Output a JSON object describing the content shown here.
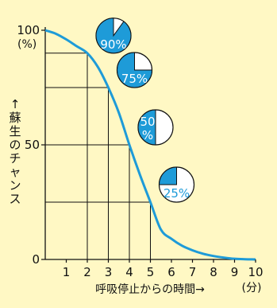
{
  "chart_data": {
    "type": "line",
    "title": "",
    "xlabel": "呼吸停止からの時間→",
    "x_unit": "(分)",
    "ylabel_chars": [
      "↑",
      "蘇",
      "生",
      "の",
      "チ",
      "ャ",
      "ン",
      "ス"
    ],
    "y_unit": "(%)",
    "xlim": [
      0,
      10
    ],
    "ylim": [
      0,
      100
    ],
    "x_ticks": [
      "1",
      "2",
      "3",
      "4",
      "5",
      "6",
      "7",
      "8",
      "9",
      "10"
    ],
    "y_ticks": [
      "0",
      "50",
      "100"
    ],
    "grid": false,
    "series": [
      {
        "x": [
          0,
          0.5,
          1,
          1.5,
          2,
          2.5,
          3,
          3.5,
          4,
          4.5,
          5,
          5.5,
          6,
          6.5,
          7,
          7.5,
          8,
          8.5,
          9,
          9.5,
          10
        ],
        "y": [
          100,
          98.5,
          96,
          93,
          90,
          84,
          75,
          64,
          50,
          37,
          25,
          13,
          9,
          6,
          4,
          2.5,
          1.5,
          0.8,
          0.3,
          0.1,
          0
        ]
      }
    ],
    "markers": [
      {
        "x": 2,
        "y": 90,
        "label": "90%"
      },
      {
        "x": 3,
        "y": 75,
        "label": "75%"
      },
      {
        "x": 4,
        "y": 50,
        "label_lines": [
          "50",
          "%"
        ]
      },
      {
        "x": 5,
        "y": 25,
        "label": "25%"
      }
    ],
    "colors": {
      "curve": "#1e9bd8",
      "pie_fill": "#1e9bd8",
      "pie_bg": "#ffffff",
      "axis": "#111111",
      "background": "#fff8c4"
    }
  }
}
